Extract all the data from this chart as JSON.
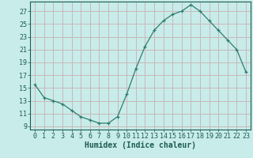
{
  "x": [
    0,
    1,
    2,
    3,
    4,
    5,
    6,
    7,
    8,
    9,
    10,
    11,
    12,
    13,
    14,
    15,
    16,
    17,
    18,
    19,
    20,
    21,
    22,
    23
  ],
  "y": [
    15.5,
    13.5,
    13.0,
    12.5,
    11.5,
    10.5,
    10.0,
    9.5,
    9.5,
    10.5,
    14.0,
    18.0,
    21.5,
    24.0,
    25.5,
    26.5,
    27.0,
    28.0,
    27.0,
    25.5,
    24.0,
    22.5,
    21.0,
    17.5
  ],
  "line_color": "#2e7d6e",
  "bg_color": "#c8ecea",
  "grid_major_color": "#c8b8b8",
  "grid_minor_color": "#dce8e8",
  "xlabel": "Humidex (Indice chaleur)",
  "xlim": [
    -0.5,
    23.5
  ],
  "ylim": [
    8.5,
    28.5
  ],
  "yticks": [
    9,
    11,
    13,
    15,
    17,
    19,
    21,
    23,
    25,
    27
  ],
  "xticks": [
    0,
    1,
    2,
    3,
    4,
    5,
    6,
    7,
    8,
    9,
    10,
    11,
    12,
    13,
    14,
    15,
    16,
    17,
    18,
    19,
    20,
    21,
    22,
    23
  ],
  "tick_color": "#1a5c52",
  "xlabel_fontsize": 7.0,
  "tick_fontsize": 6.0
}
